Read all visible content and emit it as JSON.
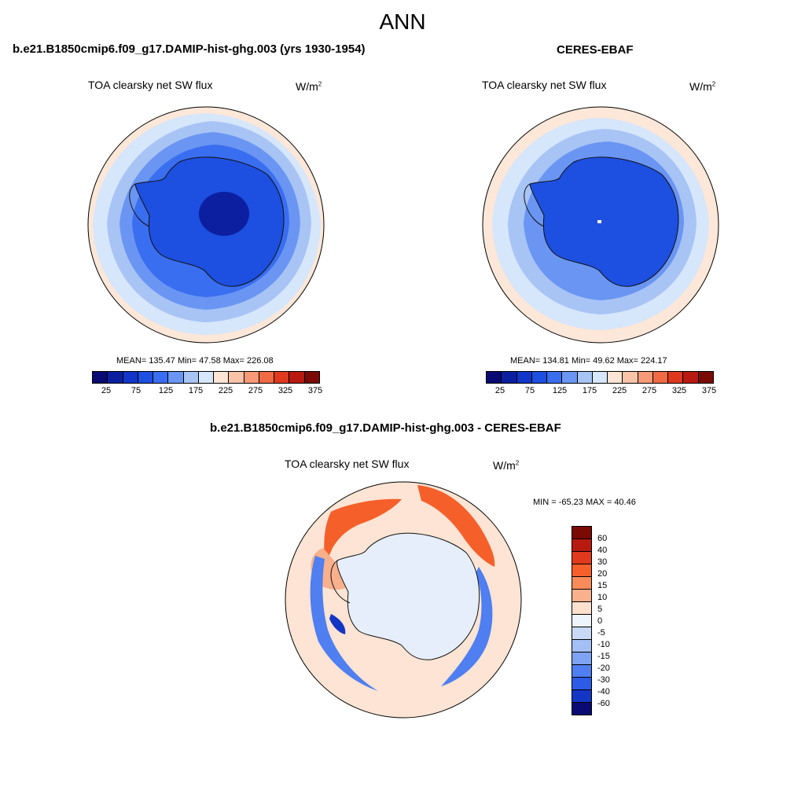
{
  "main_title": "ANN",
  "panels": [
    {
      "case_title": "b.e21.B1850cmip6.f09_g17.DAMIP-hist-ghg.003 (yrs 1930-1954)",
      "variable": "TOA clearsky net SW flux",
      "units_base": "W/m",
      "units_exp": "2",
      "stats": "MEAN= 135.47  Min=  47.58  Max= 226.08"
    },
    {
      "case_title": "CERES-EBAF",
      "variable": "TOA clearsky net SW flux",
      "units_base": "W/m",
      "units_exp": "2",
      "stats": "MEAN= 134.81  Min=  49.62  Max= 224.17"
    }
  ],
  "diff_panel": {
    "case_title": "b.e21.B1850cmip6.f09_g17.DAMIP-hist-ghg.003 - CERES-EBAF",
    "variable": "TOA clearsky net SW flux",
    "units_base": "W/m",
    "units_exp": "2",
    "stats": "MIN = -65.23 MAX =  40.46"
  },
  "abs_colorbar": {
    "colors": [
      "#0a0a73",
      "#0c1fa0",
      "#1236c9",
      "#1d4fe0",
      "#3a6ef0",
      "#6a95f2",
      "#a8c4f5",
      "#d6e6fb",
      "#fde4d4",
      "#fbc3a8",
      "#f79a78",
      "#f06a44",
      "#e0391e",
      "#b81a10",
      "#7a0a04"
    ],
    "ticks": [
      "25",
      "75",
      "125",
      "175",
      "225",
      "275",
      "325",
      "375"
    ]
  },
  "diff_colorbar": {
    "colors": [
      "#7a0a04",
      "#b81a10",
      "#e0391e",
      "#f5602a",
      "#f78c5a",
      "#f9b08c",
      "#fde0ce",
      "#eef4fc",
      "#c9daf8",
      "#a3bff5",
      "#7ea3f2",
      "#4f7ff0",
      "#2c5be6",
      "#1436c4",
      "#0a0a73"
    ],
    "ticks": [
      "60",
      "40",
      "30",
      "20",
      "15",
      "10",
      "5",
      "0",
      "-5",
      "-10",
      "-15",
      "-20",
      "-30",
      "-40",
      "-60"
    ]
  },
  "map_colors": {
    "ocean_outer": "#fde7d8",
    "ring_light": "#d6e6fb",
    "ring_mid": "#a8c4f5",
    "ring_blue": "#6a95f2",
    "ring_deep": "#3a6ef0",
    "ice": "#1d4fe0",
    "ice_core": "#0c1fa0",
    "diff_ocean": "#fde4d4",
    "diff_ice": "#e6eefb",
    "diff_red": "#f5602a",
    "diff_orange": "#f9b08c",
    "diff_blue": "#4f7ff0",
    "diff_deepblue": "#1436c4"
  }
}
